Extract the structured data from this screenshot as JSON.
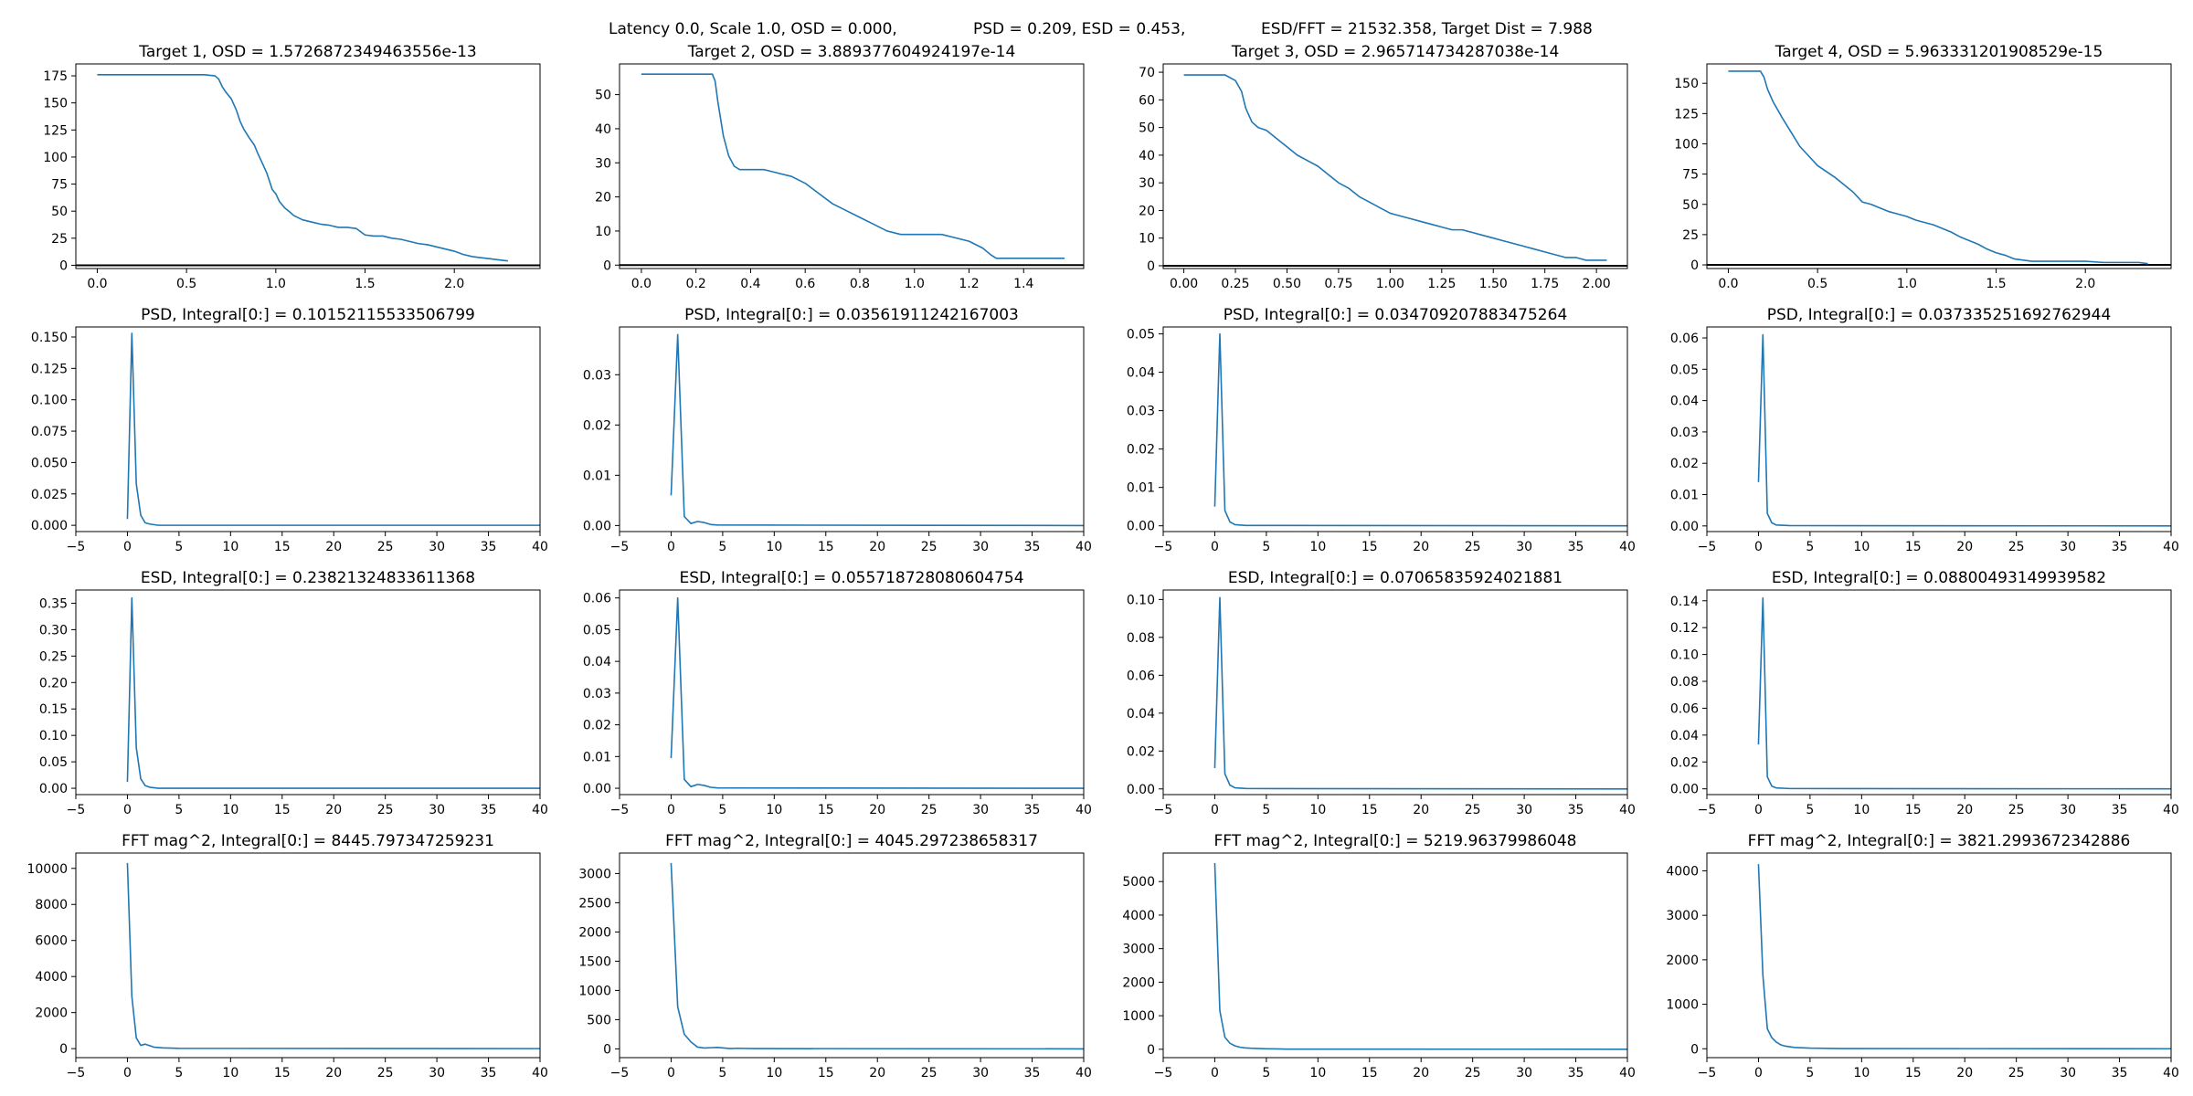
{
  "suptitle": {
    "part1": "Latency 0.0, Scale 1.0, OSD = 0.000,",
    "part2": "PSD = 0.209, ESD = 0.453,",
    "part3": "ESD/FFT = 21532.358, Target Dist = 7.988"
  },
  "colors": {
    "line": "#1f77b4",
    "axis": "#000000",
    "zero_line": "#000000"
  },
  "chart_data": [
    {
      "type": "line",
      "title": "Target 1, OSD = 1.5726872349463556e-13",
      "xlim": [
        -0.12,
        2.48
      ],
      "ylim": [
        -3,
        186
      ],
      "hline": 0,
      "xticks": [
        0,
        0.5,
        1,
        1.5,
        2
      ],
      "xtick_labels": [
        "0.0",
        "0.5",
        "1.0",
        "1.5",
        "2.0"
      ],
      "yticks": [
        0,
        25,
        50,
        75,
        100,
        125,
        150,
        175
      ],
      "ytick_labels": [
        "0",
        "25",
        "50",
        "75",
        "100",
        "125",
        "150",
        "175"
      ],
      "x": [
        0,
        0.6,
        0.66,
        0.68,
        0.7,
        0.72,
        0.75,
        0.78,
        0.8,
        0.82,
        0.85,
        0.88,
        0.9,
        0.92,
        0.95,
        0.97,
        0.98,
        1.0,
        1.02,
        1.05,
        1.08,
        1.1,
        1.15,
        1.2,
        1.25,
        1.3,
        1.35,
        1.4,
        1.45,
        1.5,
        1.55,
        1.6,
        1.65,
        1.7,
        1.75,
        1.8,
        1.85,
        1.9,
        1.95,
        2.0,
        2.05,
        2.1,
        2.15,
        2.2,
        2.25,
        2.3
      ],
      "y": [
        176,
        176,
        175,
        172,
        165,
        160,
        154,
        143,
        133,
        126,
        118,
        111,
        103,
        96,
        85,
        75,
        70,
        66,
        59,
        53,
        49,
        46,
        42,
        40,
        38,
        37,
        35,
        35,
        34,
        28,
        27,
        27,
        25,
        24,
        22,
        20,
        19,
        17,
        15,
        13,
        10,
        8,
        7,
        6,
        5,
        4
      ]
    },
    {
      "type": "line",
      "title": "Target 2, OSD = 3.889377604924197e-14",
      "xlim": [
        -0.08,
        1.62
      ],
      "ylim": [
        -1,
        59
      ],
      "hline": 0,
      "xticks": [
        0,
        0.2,
        0.4,
        0.6,
        0.8,
        1,
        1.2,
        1.4
      ],
      "xtick_labels": [
        "0.0",
        "0.2",
        "0.4",
        "0.6",
        "0.8",
        "1.0",
        "1.2",
        "1.4"
      ],
      "yticks": [
        0,
        10,
        20,
        30,
        40,
        50
      ],
      "ytick_labels": [
        "0",
        "10",
        "20",
        "30",
        "40",
        "50"
      ],
      "x": [
        0,
        0.26,
        0.27,
        0.28,
        0.3,
        0.32,
        0.34,
        0.36,
        0.38,
        0.45,
        0.5,
        0.55,
        0.6,
        0.65,
        0.7,
        0.75,
        0.8,
        0.85,
        0.9,
        0.95,
        1.0,
        1.05,
        1.1,
        1.15,
        1.2,
        1.25,
        1.28,
        1.3,
        1.4,
        1.55
      ],
      "y": [
        56,
        56,
        54,
        48,
        38,
        32,
        29,
        28,
        28,
        28,
        27,
        26,
        24,
        21,
        18,
        16,
        14,
        12,
        10,
        9,
        9,
        9,
        9,
        8,
        7,
        5,
        3,
        2,
        2,
        2
      ]
    },
    {
      "type": "line",
      "title": "Target 3, OSD = 2.965714734287038e-14",
      "xlim": [
        -0.1,
        2.15
      ],
      "ylim": [
        -1,
        73
      ],
      "hline": 0,
      "xticks": [
        0,
        0.25,
        0.5,
        0.75,
        1,
        1.25,
        1.5,
        1.75,
        2
      ],
      "xtick_labels": [
        "0.00",
        "0.25",
        "0.50",
        "0.75",
        "1.00",
        "1.25",
        "1.50",
        "1.75",
        "2.00"
      ],
      "yticks": [
        0,
        10,
        20,
        30,
        40,
        50,
        60,
        70
      ],
      "ytick_labels": [
        "0",
        "10",
        "20",
        "30",
        "40",
        "50",
        "60",
        "70"
      ],
      "x": [
        0,
        0.2,
        0.25,
        0.28,
        0.3,
        0.33,
        0.36,
        0.4,
        0.45,
        0.5,
        0.55,
        0.6,
        0.65,
        0.7,
        0.75,
        0.8,
        0.85,
        0.9,
        0.95,
        1.0,
        1.05,
        1.1,
        1.15,
        1.2,
        1.25,
        1.3,
        1.35,
        1.4,
        1.45,
        1.5,
        1.55,
        1.6,
        1.65,
        1.7,
        1.75,
        1.8,
        1.85,
        1.9,
        1.95,
        2.0,
        2.05
      ],
      "y": [
        69,
        69,
        67,
        63,
        57,
        52,
        50,
        49,
        46,
        43,
        40,
        38,
        36,
        33,
        30,
        28,
        25,
        23,
        21,
        19,
        18,
        17,
        16,
        15,
        14,
        13,
        13,
        12,
        11,
        10,
        9,
        8,
        7,
        6,
        5,
        4,
        3,
        3,
        2,
        2,
        2
      ]
    },
    {
      "type": "line",
      "title": "Target 4, OSD = 5.963331201908529e-15",
      "xlim": [
        -0.12,
        2.48
      ],
      "ylim": [
        -3,
        166
      ],
      "hline": 0,
      "xticks": [
        0,
        0.5,
        1,
        1.5,
        2
      ],
      "xtick_labels": [
        "0.0",
        "0.5",
        "1.0",
        "1.5",
        "2.0"
      ],
      "yticks": [
        0,
        25,
        50,
        75,
        100,
        125,
        150
      ],
      "ytick_labels": [
        "0",
        "25",
        "50",
        "75",
        "100",
        "125",
        "150"
      ],
      "x": [
        0,
        0.18,
        0.2,
        0.22,
        0.25,
        0.3,
        0.35,
        0.4,
        0.45,
        0.5,
        0.55,
        0.6,
        0.65,
        0.7,
        0.75,
        0.8,
        0.85,
        0.9,
        0.95,
        1.0,
        1.05,
        1.1,
        1.15,
        1.2,
        1.25,
        1.3,
        1.35,
        1.4,
        1.45,
        1.5,
        1.55,
        1.6,
        1.7,
        1.8,
        1.9,
        2.0,
        2.1,
        2.2,
        2.3,
        2.35
      ],
      "y": [
        160,
        160,
        155,
        145,
        135,
        122,
        110,
        98,
        90,
        82,
        77,
        72,
        66,
        60,
        52,
        50,
        47,
        44,
        42,
        40,
        37,
        35,
        33,
        30,
        27,
        23,
        20,
        17,
        13,
        10,
        8,
        5,
        3,
        3,
        3,
        3,
        2,
        2,
        2,
        1
      ]
    },
    {
      "type": "line",
      "title": "PSD, Integral[0:] = 0.10152115533506799",
      "xlim": [
        -5,
        40
      ],
      "ylim": [
        -0.005,
        0.158
      ],
      "xticks": [
        -5,
        0,
        5,
        10,
        15,
        20,
        25,
        30,
        35,
        40
      ],
      "xtick_labels": [
        "−5",
        "0",
        "5",
        "10",
        "15",
        "20",
        "25",
        "30",
        "35",
        "40"
      ],
      "yticks": [
        0,
        0.025,
        0.05,
        0.075,
        0.1,
        0.125,
        0.15
      ],
      "ytick_labels": [
        "0.000",
        "0.025",
        "0.050",
        "0.075",
        "0.100",
        "0.125",
        "0.150"
      ],
      "x": [
        0,
        0.43,
        0.86,
        1.29,
        1.72,
        2.15,
        3,
        40
      ],
      "y": [
        0.005,
        0.153,
        0.033,
        0.008,
        0.002,
        0.001,
        0,
        0
      ]
    },
    {
      "type": "line",
      "title": "PSD, Integral[0:] = 0.03561911242167003",
      "xlim": [
        -5,
        40
      ],
      "ylim": [
        -0.0012,
        0.0395
      ],
      "xticks": [
        -5,
        0,
        5,
        10,
        15,
        20,
        25,
        30,
        35,
        40
      ],
      "xtick_labels": [
        "−5",
        "0",
        "5",
        "10",
        "15",
        "20",
        "25",
        "30",
        "35",
        "40"
      ],
      "yticks": [
        0,
        0.01,
        0.02,
        0.03
      ],
      "ytick_labels": [
        "0.00",
        "0.01",
        "0.02",
        "0.03"
      ],
      "x": [
        0,
        0.64,
        1.28,
        1.92,
        2.56,
        3.2,
        3.84,
        4.48,
        40
      ],
      "y": [
        0.006,
        0.038,
        0.0018,
        0.0004,
        0.0008,
        0.0006,
        0.0002,
        0.0001,
        0
      ]
    },
    {
      "type": "line",
      "title": "PSD, Integral[0:] = 0.034709207883475264",
      "xlim": [
        -5,
        40
      ],
      "ylim": [
        -0.0015,
        0.0518
      ],
      "xticks": [
        -5,
        0,
        5,
        10,
        15,
        20,
        25,
        30,
        35,
        40
      ],
      "xtick_labels": [
        "−5",
        "0",
        "5",
        "10",
        "15",
        "20",
        "25",
        "30",
        "35",
        "40"
      ],
      "yticks": [
        0,
        0.01,
        0.02,
        0.03,
        0.04,
        0.05
      ],
      "ytick_labels": [
        "0.00",
        "0.01",
        "0.02",
        "0.03",
        "0.04",
        "0.05"
      ],
      "x": [
        0,
        0.49,
        0.98,
        1.47,
        1.96,
        3,
        40
      ],
      "y": [
        0.005,
        0.05,
        0.004,
        0.001,
        0.0003,
        0.0001,
        0
      ]
    },
    {
      "type": "line",
      "title": "PSD, Integral[0:] = 0.037335251692762944",
      "xlim": [
        -5,
        40
      ],
      "ylim": [
        -0.0018,
        0.0635
      ],
      "xticks": [
        -5,
        0,
        5,
        10,
        15,
        20,
        25,
        30,
        35,
        40
      ],
      "xtick_labels": [
        "−5",
        "0",
        "5",
        "10",
        "15",
        "20",
        "25",
        "30",
        "35",
        "40"
      ],
      "yticks": [
        0,
        0.01,
        0.02,
        0.03,
        0.04,
        0.05,
        0.06
      ],
      "ytick_labels": [
        "0.00",
        "0.01",
        "0.02",
        "0.03",
        "0.04",
        "0.05",
        "0.06"
      ],
      "x": [
        0,
        0.43,
        0.86,
        1.29,
        1.72,
        3,
        40
      ],
      "y": [
        0.014,
        0.061,
        0.004,
        0.001,
        0.0003,
        0.0001,
        0
      ]
    },
    {
      "type": "line",
      "title": "ESD, Integral[0:] = 0.23821324833611368",
      "xlim": [
        -5,
        40
      ],
      "ylim": [
        -0.012,
        0.375
      ],
      "xticks": [
        -5,
        0,
        5,
        10,
        15,
        20,
        25,
        30,
        35,
        40
      ],
      "xtick_labels": [
        "−5",
        "0",
        "5",
        "10",
        "15",
        "20",
        "25",
        "30",
        "35",
        "40"
      ],
      "yticks": [
        0,
        0.05,
        0.1,
        0.15,
        0.2,
        0.25,
        0.3,
        0.35
      ],
      "ytick_labels": [
        "0.00",
        "0.05",
        "0.10",
        "0.15",
        "0.20",
        "0.25",
        "0.30",
        "0.35"
      ],
      "x": [
        0,
        0.43,
        0.86,
        1.29,
        1.72,
        2.15,
        3,
        40
      ],
      "y": [
        0.012,
        0.36,
        0.077,
        0.018,
        0.005,
        0.002,
        0,
        0
      ]
    },
    {
      "type": "line",
      "title": "ESD, Integral[0:] = 0.055718728080604754",
      "xlim": [
        -5,
        40
      ],
      "ylim": [
        -0.002,
        0.0625
      ],
      "xticks": [
        -5,
        0,
        5,
        10,
        15,
        20,
        25,
        30,
        35,
        40
      ],
      "xtick_labels": [
        "−5",
        "0",
        "5",
        "10",
        "15",
        "20",
        "25",
        "30",
        "35",
        "40"
      ],
      "yticks": [
        0,
        0.01,
        0.02,
        0.03,
        0.04,
        0.05,
        0.06
      ],
      "ytick_labels": [
        "0.00",
        "0.01",
        "0.02",
        "0.03",
        "0.04",
        "0.05",
        "0.06"
      ],
      "x": [
        0,
        0.64,
        1.28,
        1.92,
        2.56,
        3.2,
        3.84,
        4.48,
        40
      ],
      "y": [
        0.0095,
        0.06,
        0.0028,
        0.0005,
        0.0012,
        0.0009,
        0.0003,
        0.0001,
        0
      ]
    },
    {
      "type": "line",
      "title": "ESD, Integral[0:] = 0.07065835924021881",
      "xlim": [
        -5,
        40
      ],
      "ylim": [
        -0.003,
        0.105
      ],
      "xticks": [
        -5,
        0,
        5,
        10,
        15,
        20,
        25,
        30,
        35,
        40
      ],
      "xtick_labels": [
        "−5",
        "0",
        "5",
        "10",
        "15",
        "20",
        "25",
        "30",
        "35",
        "40"
      ],
      "yticks": [
        0,
        0.02,
        0.04,
        0.06,
        0.08,
        0.1
      ],
      "ytick_labels": [
        "0.00",
        "0.02",
        "0.04",
        "0.06",
        "0.08",
        "0.10"
      ],
      "x": [
        0,
        0.49,
        0.98,
        1.47,
        1.96,
        3,
        40
      ],
      "y": [
        0.011,
        0.101,
        0.008,
        0.002,
        0.0006,
        0.0002,
        0
      ]
    },
    {
      "type": "line",
      "title": "ESD, Integral[0:] = 0.08800493149939582",
      "xlim": [
        -5,
        40
      ],
      "ylim": [
        -0.0043,
        0.148
      ],
      "xticks": [
        -5,
        0,
        5,
        10,
        15,
        20,
        25,
        30,
        35,
        40
      ],
      "xtick_labels": [
        "−5",
        "0",
        "5",
        "10",
        "15",
        "20",
        "25",
        "30",
        "35",
        "40"
      ],
      "yticks": [
        0,
        0.02,
        0.04,
        0.06,
        0.08,
        0.1,
        0.12,
        0.14
      ],
      "ytick_labels": [
        "0.00",
        "0.02",
        "0.04",
        "0.06",
        "0.08",
        "0.10",
        "0.12",
        "0.14"
      ],
      "x": [
        0,
        0.43,
        0.86,
        1.29,
        1.72,
        3,
        40
      ],
      "y": [
        0.033,
        0.142,
        0.009,
        0.002,
        0.0007,
        0.0002,
        0
      ]
    },
    {
      "type": "line",
      "title": "FFT mag^2, Integral[0:] = 8445.797347259231",
      "xlim": [
        -5,
        40
      ],
      "ylim": [
        -500,
        10850
      ],
      "xticks": [
        -5,
        0,
        5,
        10,
        15,
        20,
        25,
        30,
        35,
        40
      ],
      "xtick_labels": [
        "−5",
        "0",
        "5",
        "10",
        "15",
        "20",
        "25",
        "30",
        "35",
        "40"
      ],
      "yticks": [
        0,
        2000,
        4000,
        6000,
        8000,
        10000
      ],
      "ytick_labels": [
        "0",
        "2000",
        "4000",
        "6000",
        "8000",
        "10000"
      ],
      "x": [
        0,
        0.43,
        0.86,
        1.29,
        1.72,
        2.58,
        3.44,
        5,
        40
      ],
      "y": [
        10300,
        2900,
        600,
        180,
        250,
        80,
        40,
        15,
        0
      ]
    },
    {
      "type": "line",
      "title": "FFT mag^2, Integral[0:] = 4045.297238658317",
      "xlim": [
        -5,
        40
      ],
      "ylim": [
        -150,
        3350
      ],
      "xticks": [
        -5,
        0,
        5,
        10,
        15,
        20,
        25,
        30,
        35,
        40
      ],
      "xtick_labels": [
        "−5",
        "0",
        "5",
        "10",
        "15",
        "20",
        "25",
        "30",
        "35",
        "40"
      ],
      "yticks": [
        0,
        500,
        1000,
        1500,
        2000,
        2500,
        3000
      ],
      "ytick_labels": [
        "0",
        "500",
        "1000",
        "1500",
        "2000",
        "2500",
        "3000"
      ],
      "x": [
        0,
        0.64,
        1.28,
        1.92,
        2.56,
        3.2,
        3.84,
        4.48,
        5.12,
        5.76,
        6.4,
        8,
        40
      ],
      "y": [
        3180,
        720,
        250,
        120,
        30,
        15,
        20,
        25,
        15,
        5,
        10,
        5,
        0
      ]
    },
    {
      "type": "line",
      "title": "FFT mag^2, Integral[0:] = 5219.96379986048",
      "xlim": [
        -5,
        40
      ],
      "ylim": [
        -250,
        5850
      ],
      "xticks": [
        -5,
        0,
        5,
        10,
        15,
        20,
        25,
        30,
        35,
        40
      ],
      "xtick_labels": [
        "−5",
        "0",
        "5",
        "10",
        "15",
        "20",
        "25",
        "30",
        "35",
        "40"
      ],
      "yticks": [
        0,
        1000,
        2000,
        3000,
        4000,
        5000
      ],
      "ytick_labels": [
        "0",
        "1000",
        "2000",
        "3000",
        "4000",
        "5000"
      ],
      "x": [
        0,
        0.49,
        0.98,
        1.47,
        1.96,
        2.45,
        2.94,
        3.5,
        5,
        7,
        40
      ],
      "y": [
        5550,
        1150,
        360,
        180,
        100,
        60,
        40,
        30,
        15,
        5,
        0
      ]
    },
    {
      "type": "line",
      "title": "FFT mag^2, Integral[0:] = 3821.2993672342886",
      "xlim": [
        -5,
        40
      ],
      "ylim": [
        -200,
        4400
      ],
      "xticks": [
        -5,
        0,
        5,
        10,
        15,
        20,
        25,
        30,
        35,
        40
      ],
      "xtick_labels": [
        "−5",
        "0",
        "5",
        "10",
        "15",
        "20",
        "25",
        "30",
        "35",
        "40"
      ],
      "yticks": [
        0,
        1000,
        2000,
        3000,
        4000
      ],
      "ytick_labels": [
        "0",
        "1000",
        "2000",
        "3000",
        "4000"
      ],
      "x": [
        0,
        0.43,
        0.86,
        1.29,
        1.72,
        2.15,
        2.58,
        3.44,
        5,
        8,
        40
      ],
      "y": [
        4150,
        1650,
        450,
        250,
        150,
        90,
        60,
        30,
        15,
        5,
        0
      ]
    }
  ]
}
